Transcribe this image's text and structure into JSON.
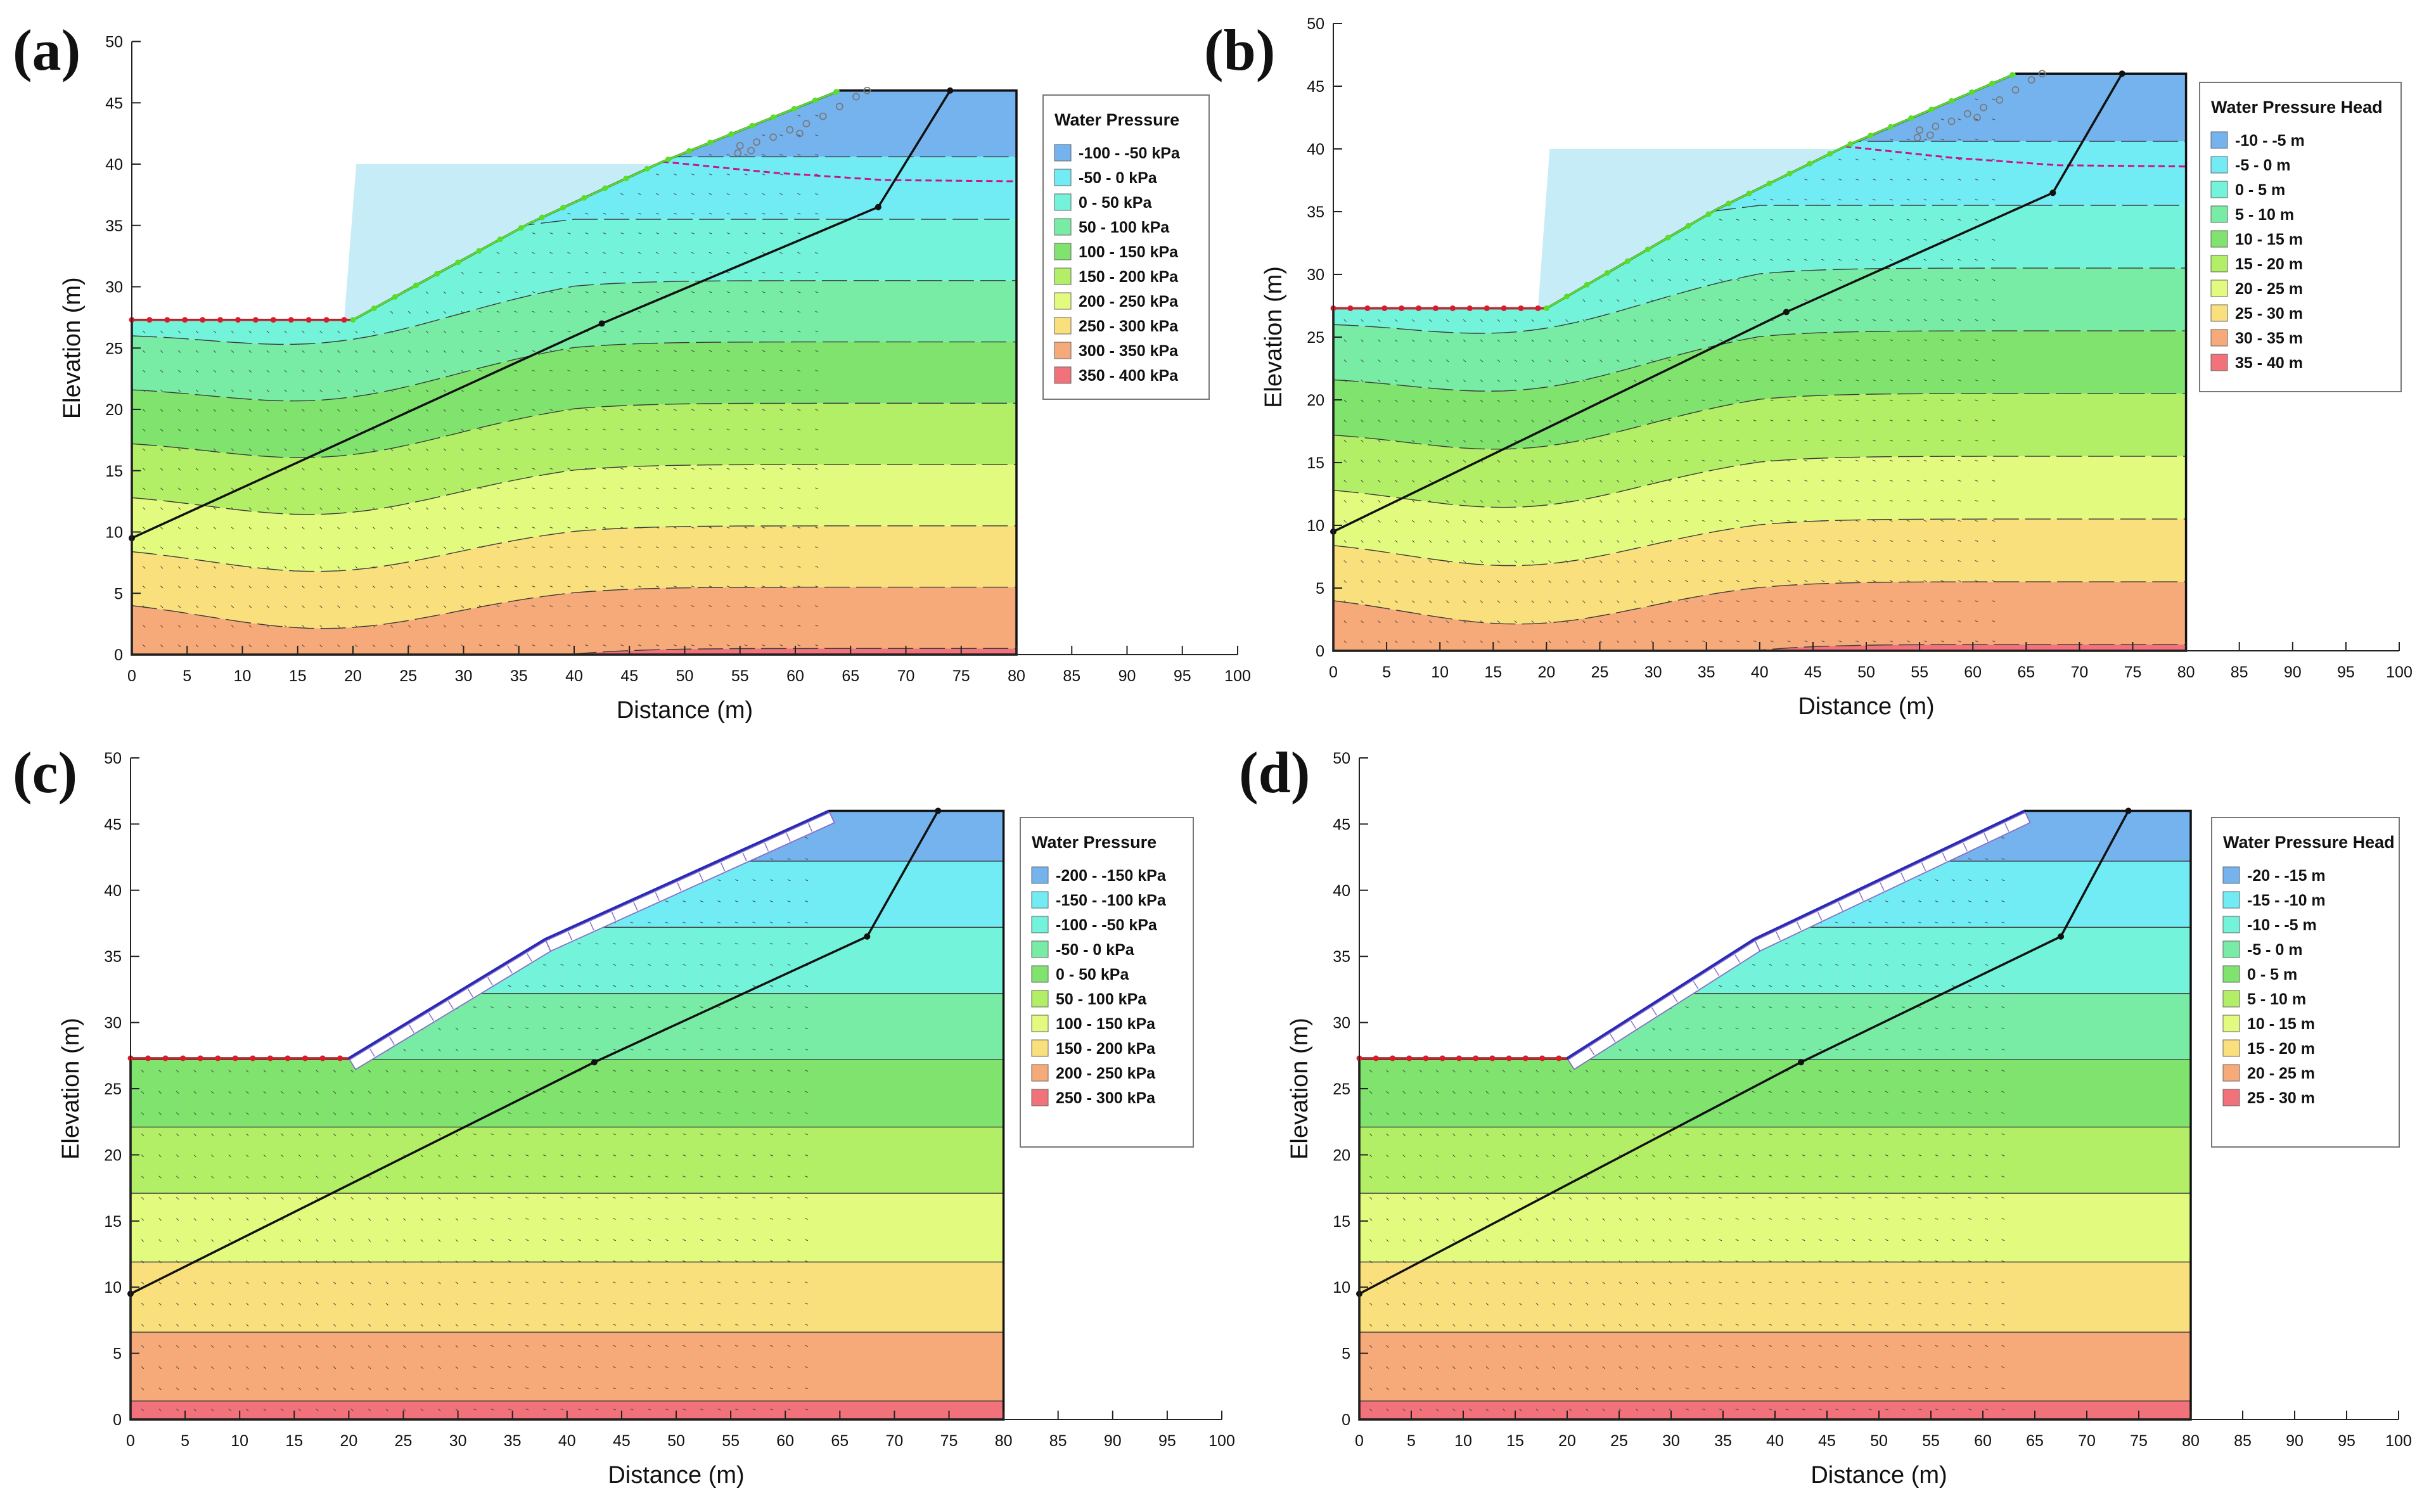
{
  "chart_data": [
    {
      "type": "contour",
      "panel_label": "(a)",
      "xlabel": "Distance (m)",
      "ylabel": "Elevation (m)",
      "xlim": [
        0,
        100
      ],
      "ylim": [
        0,
        50
      ],
      "x_ticks": [
        0,
        5,
        10,
        15,
        20,
        25,
        30,
        35,
        40,
        45,
        50,
        55,
        60,
        65,
        70,
        75,
        80,
        85,
        90,
        95,
        100
      ],
      "y_ticks": [
        0,
        5,
        10,
        15,
        20,
        25,
        30,
        35,
        40,
        45,
        50
      ],
      "legend_title": "Water Pressure",
      "legend": [
        "-100 - -50 kPa",
        "-50 - 0 kPa",
        "0 - 50 kPa",
        "50 - 100 kPa",
        "100 - 150 kPa",
        "150 - 200 kPa",
        "200 - 250 kPa",
        "250 - 300 kPa",
        "300 - 350 kPa",
        "350 - 400 kPa"
      ],
      "legend_colors": [
        "#74b3ee",
        "#72ecf4",
        "#73f3d9",
        "#78eca4",
        "#7fe36e",
        "#b2ee66",
        "#e2fb7f",
        "#f9e07c",
        "#f6aa7a",
        "#f1727a"
      ],
      "bands": [
        40.6,
        35.5,
        30.5,
        25.5,
        20.5,
        15.5,
        10.5,
        5.5,
        0.5
      ],
      "band_edge": 5,
      "show_water_body": true,
      "show_phreatic_line": true,
      "show_seepage_markers": true,
      "show_mesh_nodes": true,
      "show_geogrid": false,
      "slip_surface": [
        [
          0,
          9.5
        ],
        [
          42.5,
          27
        ],
        [
          67.5,
          36.5
        ],
        [
          74,
          46
        ]
      ],
      "ground_surface": [
        [
          0,
          27.3
        ],
        [
          20,
          27.3
        ],
        [
          36,
          35.2
        ],
        [
          48,
          40.2
        ],
        [
          64,
          46
        ],
        [
          80,
          46
        ]
      ]
    },
    {
      "type": "contour",
      "panel_label": "(b)",
      "xlabel": "Distance (m)",
      "ylabel": "Elevation (m)",
      "xlim": [
        0,
        100
      ],
      "ylim": [
        0,
        50
      ],
      "x_ticks": [
        0,
        5,
        10,
        15,
        20,
        25,
        30,
        35,
        40,
        45,
        50,
        55,
        60,
        65,
        70,
        75,
        80,
        85,
        90,
        95,
        100
      ],
      "y_ticks": [
        0,
        5,
        10,
        15,
        20,
        25,
        30,
        35,
        40,
        45,
        50
      ],
      "legend_title": "Water Pressure Head",
      "legend": [
        "-10 - -5 m",
        "-5 - 0 m",
        "0 - 5 m",
        "5 - 10 m",
        "10 - 15 m",
        "15 - 20 m",
        "20 - 25 m",
        "25 - 30 m",
        "30 - 35 m",
        "35 - 40 m"
      ],
      "legend_colors": [
        "#74b3ee",
        "#72ecf4",
        "#73f3d9",
        "#78eca4",
        "#7fe36e",
        "#b2ee66",
        "#e2fb7f",
        "#f9e07c",
        "#f6aa7a",
        "#f1727a"
      ],
      "bands": [
        40.6,
        35.5,
        30.5,
        25.5,
        20.5,
        15.5,
        10.5,
        5.5,
        0.5
      ],
      "band_edge": 5,
      "show_water_body": true,
      "show_phreatic_line": true,
      "show_seepage_markers": true,
      "show_mesh_nodes": true,
      "show_geogrid": false,
      "slip_surface": [
        [
          0,
          9.5
        ],
        [
          42.5,
          27
        ],
        [
          67.5,
          36.5
        ],
        [
          74,
          46
        ]
      ],
      "ground_surface": [
        [
          0,
          27.3
        ],
        [
          20,
          27.3
        ],
        [
          36,
          35.2
        ],
        [
          48,
          40.2
        ],
        [
          64,
          46
        ],
        [
          80,
          46
        ]
      ]
    },
    {
      "type": "contour",
      "panel_label": "(c)",
      "xlabel": "Distance (m)",
      "ylabel": "Elevation (m)",
      "xlim": [
        0,
        100
      ],
      "ylim": [
        0,
        50
      ],
      "x_ticks": [
        0,
        5,
        10,
        15,
        20,
        25,
        30,
        35,
        40,
        45,
        50,
        55,
        60,
        65,
        70,
        75,
        80,
        85,
        90,
        95,
        100
      ],
      "y_ticks": [
        0,
        5,
        10,
        15,
        20,
        25,
        30,
        35,
        40,
        45,
        50
      ],
      "legend_title": "Water Pressure",
      "legend": [
        "-200 - -150 kPa",
        "-150 - -100 kPa",
        "-100 - -50 kPa",
        "-50 - 0 kPa",
        "0 - 50 kPa",
        "50 - 100 kPa",
        "100 - 150 kPa",
        "150 - 200 kPa",
        "200 - 250 kPa",
        "250 - 300 kPa"
      ],
      "legend_colors": [
        "#74b3ee",
        "#72ecf4",
        "#73f3d9",
        "#78eca4",
        "#7fe36e",
        "#b2ee66",
        "#e2fb7f",
        "#f9e07c",
        "#f6aa7a",
        "#f1727a"
      ],
      "bands": [
        42.2,
        37.2,
        32.2,
        27.2,
        22.1,
        17.1,
        11.9,
        6.6,
        1.4
      ],
      "band_edge": 0,
      "show_water_body": false,
      "show_phreatic_line": false,
      "show_seepage_markers": false,
      "show_mesh_nodes": false,
      "show_geogrid": true,
      "slip_surface": [
        [
          0,
          9.5
        ],
        [
          42.5,
          27
        ],
        [
          67.5,
          36.5
        ],
        [
          74,
          46
        ]
      ],
      "ground_surface": [
        [
          0,
          27.3
        ],
        [
          20,
          27.3
        ],
        [
          38,
          36.3
        ],
        [
          64,
          46
        ],
        [
          80,
          46
        ]
      ]
    },
    {
      "type": "contour",
      "panel_label": "(d)",
      "xlabel": "Distance (m)",
      "ylabel": "Elevation (m)",
      "xlim": [
        0,
        100
      ],
      "ylim": [
        0,
        50
      ],
      "x_ticks": [
        0,
        5,
        10,
        15,
        20,
        25,
        30,
        35,
        40,
        45,
        50,
        55,
        60,
        65,
        70,
        75,
        80,
        85,
        90,
        95,
        100
      ],
      "y_ticks": [
        0,
        5,
        10,
        15,
        20,
        25,
        30,
        35,
        40,
        45,
        50
      ],
      "legend_title": "Water Pressure Head",
      "legend": [
        "-20 - -15 m",
        "-15 - -10 m",
        "-10 - -5 m",
        "-5 - 0 m",
        "0 - 5 m",
        "5 - 10 m",
        "10 - 15 m",
        "15 - 20 m",
        "20 - 25 m",
        "25 - 30 m"
      ],
      "legend_colors": [
        "#74b3ee",
        "#72ecf4",
        "#73f3d9",
        "#78eca4",
        "#7fe36e",
        "#b2ee66",
        "#e2fb7f",
        "#f9e07c",
        "#f6aa7a",
        "#f1727a"
      ],
      "bands": [
        42.2,
        37.2,
        32.2,
        27.2,
        22.1,
        17.1,
        11.9,
        6.6,
        1.4
      ],
      "band_edge": 0,
      "show_water_body": false,
      "show_phreatic_line": false,
      "show_seepage_markers": false,
      "show_mesh_nodes": false,
      "show_geogrid": true,
      "slip_surface": [
        [
          0,
          9.5
        ],
        [
          42.5,
          27
        ],
        [
          67.5,
          36.5
        ],
        [
          74,
          46
        ]
      ],
      "ground_surface": [
        [
          0,
          27.3
        ],
        [
          20,
          27.3
        ],
        [
          38,
          36.3
        ],
        [
          64,
          46
        ],
        [
          80,
          46
        ]
      ]
    }
  ]
}
